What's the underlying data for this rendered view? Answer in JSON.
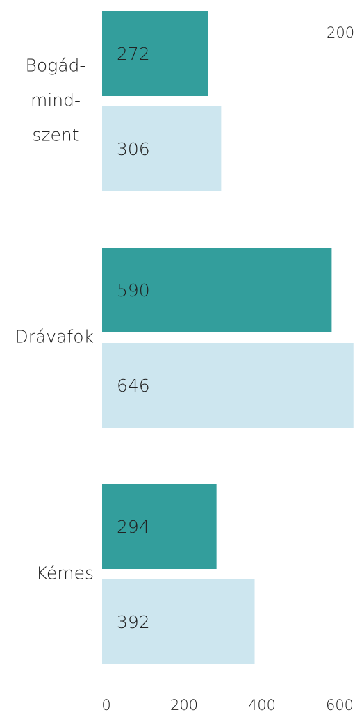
{
  "chart_data": {
    "type": "bar",
    "orientation": "horizontal",
    "categories": [
      "Bogád-mind-szent",
      "Drávafok",
      "Kémes"
    ],
    "series": [
      {
        "color": "#339e9c",
        "values": [
          272,
          590,
          294
        ]
      },
      {
        "color": "#cde6ef",
        "values": [
          306,
          646,
          392
        ]
      }
    ],
    "xlim": [
      0,
      650
    ],
    "xticks": [
      0,
      200,
      400,
      600
    ],
    "grid": false,
    "annotations": [
      "200"
    ]
  }
}
